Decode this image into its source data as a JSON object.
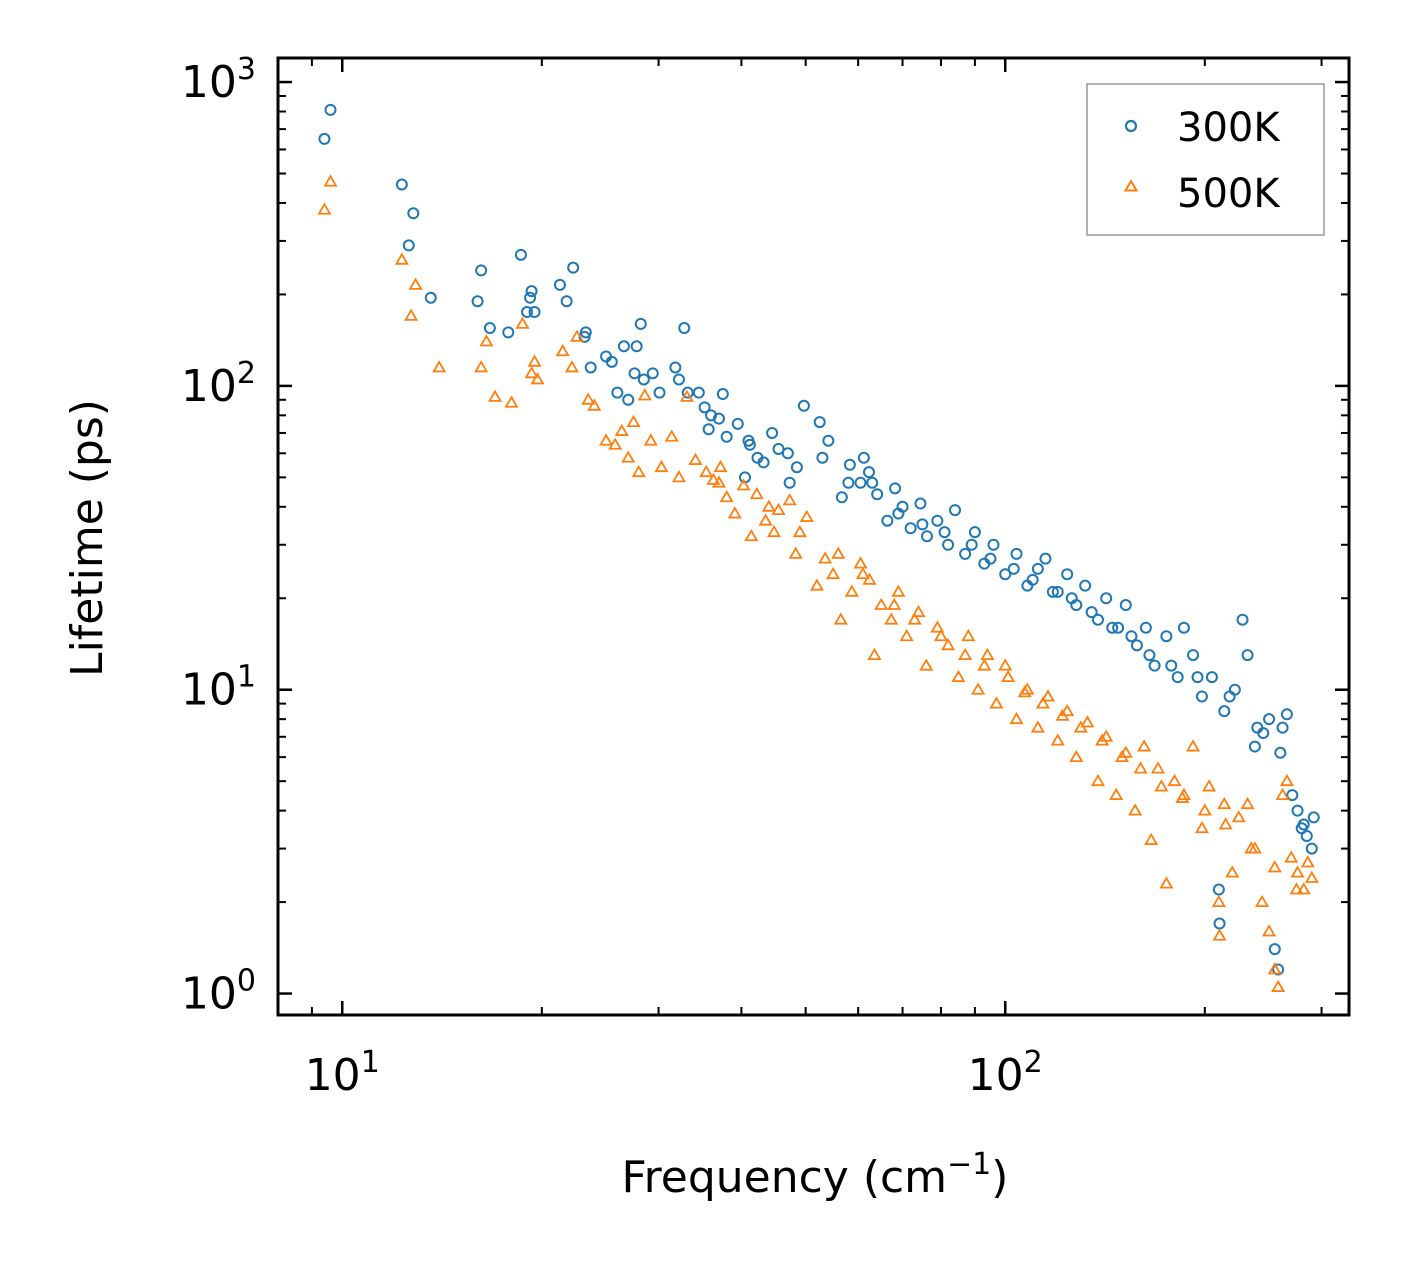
{
  "chart_data": {
    "type": "scatter",
    "xscale": "log",
    "yscale": "log",
    "xlabel": "Frequency (cm",
    "xlabel_sup": "−1",
    "xlabel_close": ")",
    "ylabel": "Lifetime (ps)",
    "xlim": [
      8.0,
      330
    ],
    "ylim": [
      0.85,
      1200
    ],
    "x_ticks": [
      {
        "value": 10,
        "base": "10",
        "exp": "1"
      },
      {
        "value": 100,
        "base": "10",
        "exp": "2"
      }
    ],
    "y_ticks": [
      {
        "value": 1,
        "base": "10",
        "exp": "0"
      },
      {
        "value": 10,
        "base": "10",
        "exp": "1"
      },
      {
        "value": 100,
        "base": "10",
        "exp": "2"
      },
      {
        "value": 1000,
        "base": "10",
        "exp": "3"
      }
    ],
    "legend_position": "top-right",
    "series": [
      {
        "name": "300K",
        "marker": "circle",
        "color": "#1f77b4",
        "points": [
          [
            9.4,
            650
          ],
          [
            9.6,
            810
          ],
          [
            12.3,
            460
          ],
          [
            12.6,
            290
          ],
          [
            12.8,
            370
          ],
          [
            13.6,
            195
          ],
          [
            16.0,
            190
          ],
          [
            16.2,
            240
          ],
          [
            16.7,
            155
          ],
          [
            17.8,
            150
          ],
          [
            18.6,
            270
          ],
          [
            19.0,
            175
          ],
          [
            19.2,
            195
          ],
          [
            19.3,
            205
          ],
          [
            19.5,
            175
          ],
          [
            21.3,
            215
          ],
          [
            21.8,
            190
          ],
          [
            22.3,
            245
          ],
          [
            23.2,
            145
          ],
          [
            23.3,
            150
          ],
          [
            23.7,
            115
          ],
          [
            25.0,
            125
          ],
          [
            25.5,
            120
          ],
          [
            26.0,
            95
          ],
          [
            26.6,
            135
          ],
          [
            27.0,
            90
          ],
          [
            27.6,
            110
          ],
          [
            27.8,
            135
          ],
          [
            28.2,
            160
          ],
          [
            28.5,
            105
          ],
          [
            29.4,
            110
          ],
          [
            30.1,
            95
          ],
          [
            31.8,
            115
          ],
          [
            32.2,
            105
          ],
          [
            32.8,
            155
          ],
          [
            33.2,
            95
          ],
          [
            34.5,
            95
          ],
          [
            35.2,
            85
          ],
          [
            35.7,
            72
          ],
          [
            37.0,
            78
          ],
          [
            37.5,
            94
          ],
          [
            38.0,
            68
          ],
          [
            39.5,
            75
          ],
          [
            40.5,
            50
          ],
          [
            41.2,
            64
          ],
          [
            42.3,
            58
          ],
          [
            43.2,
            56
          ],
          [
            44.5,
            70
          ],
          [
            45.5,
            62
          ],
          [
            47.3,
            48
          ],
          [
            48.5,
            54
          ],
          [
            49.7,
            86
          ],
          [
            52.5,
            76
          ],
          [
            54.1,
            66
          ],
          [
            56.7,
            43
          ],
          [
            58.3,
            55
          ],
          [
            60.5,
            48
          ],
          [
            61.2,
            58
          ],
          [
            62.3,
            52
          ],
          [
            64.1,
            44
          ],
          [
            66.4,
            36
          ],
          [
            68.2,
            46
          ],
          [
            70.0,
            40
          ],
          [
            72.0,
            34
          ],
          [
            74.5,
            41
          ],
          [
            76.2,
            32
          ],
          [
            79.0,
            36
          ],
          [
            82.0,
            30
          ],
          [
            84.0,
            39
          ],
          [
            87.0,
            28
          ],
          [
            90.0,
            33
          ],
          [
            93.0,
            26
          ],
          [
            96.0,
            30
          ],
          [
            100.0,
            24
          ],
          [
            104.0,
            28
          ],
          [
            108.0,
            22
          ],
          [
            112.0,
            25
          ],
          [
            115.0,
            27
          ],
          [
            120.0,
            21
          ],
          [
            124.0,
            24
          ],
          [
            128.0,
            19
          ],
          [
            132.0,
            22
          ],
          [
            138.0,
            17
          ],
          [
            142.0,
            20
          ],
          [
            148.0,
            16
          ],
          [
            152.0,
            19
          ],
          [
            158.0,
            14
          ],
          [
            163.0,
            16
          ],
          [
            168.0,
            12
          ],
          [
            175.0,
            15
          ],
          [
            182.0,
            11
          ],
          [
            186.0,
            16
          ],
          [
            192.0,
            13
          ],
          [
            198.0,
            9.5
          ],
          [
            205.0,
            11
          ],
          [
            210.0,
            2.2
          ],
          [
            210.5,
            1.7
          ],
          [
            214.0,
            8.5
          ],
          [
            222.0,
            10
          ],
          [
            228.0,
            17
          ],
          [
            232.0,
            13
          ],
          [
            238.0,
            6.5
          ],
          [
            245.0,
            7.2
          ],
          [
            250.0,
            8.0
          ],
          [
            255.0,
            1.4
          ],
          [
            258.0,
            1.2
          ],
          [
            262.0,
            7.5
          ],
          [
            266.0,
            8.3
          ],
          [
            271.0,
            4.5
          ],
          [
            276.0,
            4.0
          ],
          [
            280.0,
            3.5
          ],
          [
            285.0,
            3.3
          ],
          [
            290.0,
            3.0
          ],
          [
            292.0,
            3.8
          ],
          [
            36.0,
            80
          ],
          [
            41.0,
            66
          ],
          [
            47.0,
            60
          ],
          [
            53.0,
            58
          ],
          [
            58.0,
            48
          ],
          [
            63.0,
            48
          ],
          [
            69.0,
            38
          ],
          [
            75.0,
            35
          ],
          [
            81.0,
            33
          ],
          [
            89.0,
            30
          ],
          [
            95.0,
            27
          ],
          [
            103.0,
            25
          ],
          [
            110.0,
            23
          ],
          [
            118.0,
            21
          ],
          [
            126.0,
            20
          ],
          [
            135.0,
            18
          ],
          [
            145.0,
            16
          ],
          [
            155.0,
            15
          ],
          [
            165.0,
            13
          ],
          [
            178.0,
            12
          ],
          [
            195.0,
            11
          ],
          [
            218.0,
            9.5
          ],
          [
            240.0,
            7.5
          ],
          [
            260.0,
            6.2
          ],
          [
            282.0,
            3.6
          ]
        ]
      },
      {
        "name": "500K",
        "marker": "triangle",
        "color": "#ff7f0e",
        "points": [
          [
            9.4,
            380
          ],
          [
            9.6,
            470
          ],
          [
            12.3,
            260
          ],
          [
            12.7,
            170
          ],
          [
            12.9,
            215
          ],
          [
            14.0,
            115
          ],
          [
            16.2,
            115
          ],
          [
            16.5,
            140
          ],
          [
            17.0,
            92
          ],
          [
            18.0,
            88
          ],
          [
            18.7,
            160
          ],
          [
            19.3,
            110
          ],
          [
            19.5,
            120
          ],
          [
            19.7,
            105
          ],
          [
            21.5,
            130
          ],
          [
            22.2,
            115
          ],
          [
            22.6,
            145
          ],
          [
            23.5,
            90
          ],
          [
            24.0,
            86
          ],
          [
            25.0,
            66
          ],
          [
            25.8,
            64
          ],
          [
            26.4,
            71
          ],
          [
            27.0,
            58
          ],
          [
            27.5,
            76
          ],
          [
            28.0,
            52
          ],
          [
            28.6,
            93
          ],
          [
            29.2,
            66
          ],
          [
            30.3,
            54
          ],
          [
            31.4,
            68
          ],
          [
            32.2,
            50
          ],
          [
            33.1,
            92
          ],
          [
            34.1,
            57
          ],
          [
            35.4,
            52
          ],
          [
            36.3,
            49
          ],
          [
            37.2,
            54
          ],
          [
            38.0,
            43
          ],
          [
            39.1,
            38
          ],
          [
            40.3,
            47
          ],
          [
            41.4,
            32
          ],
          [
            42.2,
            44
          ],
          [
            43.5,
            36
          ],
          [
            44.8,
            33
          ],
          [
            45.5,
            39
          ],
          [
            47.3,
            42
          ],
          [
            48.3,
            28
          ],
          [
            50.2,
            37
          ],
          [
            52.0,
            22
          ],
          [
            53.5,
            27
          ],
          [
            55.0,
            24
          ],
          [
            56.5,
            17
          ],
          [
            58.7,
            21
          ],
          [
            60.5,
            26
          ],
          [
            62.4,
            23
          ],
          [
            63.5,
            13
          ],
          [
            65.0,
            19
          ],
          [
            67.3,
            17
          ],
          [
            69.0,
            21
          ],
          [
            71.0,
            15
          ],
          [
            74.0,
            18
          ],
          [
            76.0,
            12
          ],
          [
            79.0,
            16
          ],
          [
            82.0,
            14
          ],
          [
            85.0,
            11
          ],
          [
            88.0,
            15
          ],
          [
            91.0,
            10
          ],
          [
            94.0,
            13
          ],
          [
            97.0,
            9.0
          ],
          [
            100.0,
            12
          ],
          [
            104.0,
            8.0
          ],
          [
            108.0,
            10
          ],
          [
            112.0,
            7.5
          ],
          [
            116.0,
            9.5
          ],
          [
            120.0,
            6.8
          ],
          [
            124.0,
            8.5
          ],
          [
            128.0,
            6.0
          ],
          [
            133.0,
            7.8
          ],
          [
            138.0,
            5.0
          ],
          [
            142.0,
            7.0
          ],
          [
            147.0,
            4.5
          ],
          [
            152.0,
            6.2
          ],
          [
            157.0,
            4.0
          ],
          [
            162.0,
            6.5
          ],
          [
            166.0,
            3.2
          ],
          [
            170.0,
            5.5
          ],
          [
            175.0,
            2.3
          ],
          [
            180.0,
            5.0
          ],
          [
            186.0,
            4.5
          ],
          [
            192.0,
            6.5
          ],
          [
            198.0,
            3.5
          ],
          [
            203.0,
            4.8
          ],
          [
            210.0,
            2.0
          ],
          [
            210.5,
            1.55
          ],
          [
            214.0,
            4.2
          ],
          [
            220.0,
            2.5
          ],
          [
            225.0,
            3.8
          ],
          [
            232.0,
            4.2
          ],
          [
            238.0,
            3.0
          ],
          [
            244.0,
            2.0
          ],
          [
            250.0,
            1.6
          ],
          [
            255.0,
            1.2
          ],
          [
            258.0,
            1.05
          ],
          [
            262.0,
            4.5
          ],
          [
            266.0,
            5.0
          ],
          [
            270.0,
            2.8
          ],
          [
            276.0,
            2.5
          ],
          [
            282.0,
            2.2
          ],
          [
            286.0,
            2.7
          ],
          [
            290.0,
            2.4
          ],
          [
            37.0,
            48
          ],
          [
            44.0,
            40
          ],
          [
            49.0,
            33
          ],
          [
            56.0,
            28
          ],
          [
            61.0,
            24
          ],
          [
            68.0,
            19
          ],
          [
            73.0,
            17
          ],
          [
            80.0,
            15
          ],
          [
            87.0,
            13
          ],
          [
            93.0,
            12
          ],
          [
            101.0,
            11
          ],
          [
            107.0,
            9.8
          ],
          [
            114.0,
            9.0
          ],
          [
            122.0,
            8.2
          ],
          [
            130.0,
            7.5
          ],
          [
            140.0,
            6.8
          ],
          [
            150.0,
            6.0
          ],
          [
            160.0,
            5.5
          ],
          [
            172.0,
            4.8
          ],
          [
            185.0,
            4.4
          ],
          [
            200.0,
            4.0
          ],
          [
            215.0,
            3.6
          ],
          [
            235.0,
            3.0
          ],
          [
            255.0,
            2.6
          ],
          [
            275.0,
            2.2
          ]
        ]
      }
    ]
  }
}
